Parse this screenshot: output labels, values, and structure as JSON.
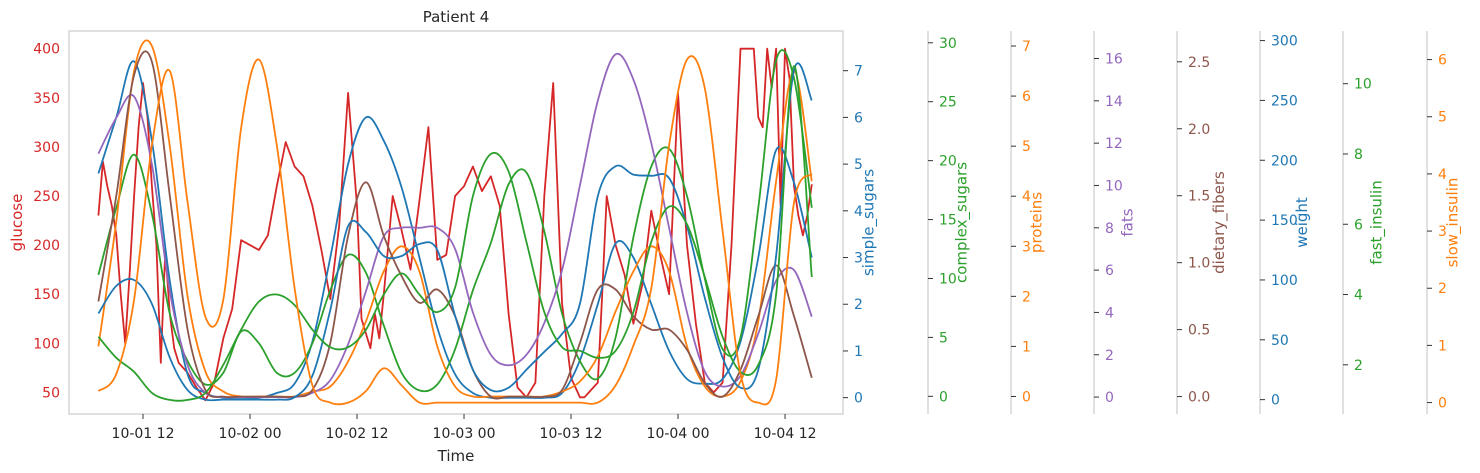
{
  "chart_data": {
    "type": "line",
    "title": "Patient 4",
    "xlabel": "Time",
    "x_tick_labels": [
      "10-01 12",
      "10-02 00",
      "10-02 12",
      "10-03 00",
      "10-03 12",
      "10-04 00",
      "10-04 12"
    ],
    "x_tick_hours": [
      12,
      24,
      36,
      48,
      60,
      72,
      84
    ],
    "xlim_hours": [
      3.7,
      90.5
    ],
    "x_hours": [
      7,
      9,
      11,
      13,
      15,
      17,
      19,
      21,
      23,
      25,
      27,
      29,
      31,
      33,
      35,
      37,
      39,
      41,
      43,
      45,
      47,
      49,
      51,
      53,
      55,
      57,
      59,
      61,
      63,
      65,
      67,
      69,
      71,
      73,
      75,
      77,
      79,
      81,
      83,
      85,
      87
    ],
    "axes": [
      {
        "name": "glucose",
        "label": "glucose",
        "color": "#d62728",
        "ylim": [
          28,
          418
        ],
        "ticks": [
          50,
          100,
          150,
          200,
          250,
          300,
          350,
          400
        ],
        "tick_labels": [
          "50",
          "100",
          "150",
          "200",
          "250",
          "300",
          "350",
          "400"
        ]
      },
      {
        "name": "simple_sugars",
        "label": "simple_sugars",
        "color": "#1f77b4",
        "ylim": [
          -0.35,
          7.85
        ],
        "ticks": [
          0,
          1,
          2,
          3,
          4,
          5,
          6,
          7
        ],
        "tick_labels": [
          "0",
          "1",
          "2",
          "3",
          "4",
          "5",
          "6",
          "7"
        ]
      },
      {
        "name": "complex_sugars",
        "label": "complex_sugars",
        "color": "#2ca02c",
        "ylim": [
          -1.5,
          31
        ],
        "ticks": [
          0,
          5,
          10,
          15,
          20,
          25,
          30
        ],
        "tick_labels": [
          "0",
          "5",
          "10",
          "15",
          "20",
          "25",
          "30"
        ]
      },
      {
        "name": "proteins",
        "label": "proteins",
        "color": "#ff7f0e",
        "ylim": [
          -0.35,
          7.3
        ],
        "ticks": [
          0,
          1,
          2,
          3,
          4,
          5,
          6,
          7
        ],
        "tick_labels": [
          "0",
          "1",
          "2",
          "3",
          "4",
          "5",
          "6",
          "7"
        ]
      },
      {
        "name": "fats",
        "label": "fats",
        "color": "#9467bd",
        "ylim": [
          -0.8,
          17.3
        ],
        "ticks": [
          0,
          2,
          4,
          6,
          8,
          10,
          12,
          14,
          16
        ],
        "tick_labels": [
          "0",
          "2",
          "4",
          "6",
          "8",
          "10",
          "12",
          "14",
          "16"
        ]
      },
      {
        "name": "dietary_fibers",
        "label": "dietary_fibers",
        "color": "#8c564b",
        "ylim": [
          -0.13,
          2.73
        ],
        "ticks": [
          0,
          0.5,
          1.0,
          1.5,
          2.0,
          2.5
        ],
        "tick_labels": [
          "0.0",
          "0.5",
          "1.0",
          "1.5",
          "2.0",
          "2.5"
        ]
      },
      {
        "name": "weight",
        "label": "weight",
        "color": "#1f77b4",
        "ylim": [
          -12,
          308
        ],
        "ticks": [
          0,
          50,
          100,
          150,
          200,
          250,
          300
        ],
        "tick_labels": [
          "0",
          "50",
          "100",
          "150",
          "200",
          "250",
          "300"
        ]
      },
      {
        "name": "fast_insulin",
        "label": "fast_insulin",
        "color": "#2ca02c",
        "ylim": [
          0.6,
          11.5
        ],
        "ticks": [
          2,
          4,
          6,
          8,
          10
        ],
        "tick_labels": [
          "2",
          "4",
          "6",
          "8",
          "10"
        ]
      },
      {
        "name": "slow_insulin",
        "label": "slow_insulin",
        "color": "#ff7f0e",
        "ylim": [
          -0.2,
          6.5
        ],
        "ticks": [
          0,
          1,
          2,
          3,
          4,
          5,
          6
        ],
        "tick_labels": [
          "0",
          "1",
          "2",
          "3",
          "4",
          "5",
          "6"
        ]
      }
    ],
    "series": [
      {
        "name": "glucose",
        "axis": 0,
        "color": "#d62728",
        "x": [
          7,
          7.5,
          8,
          8.5,
          9,
          9.5,
          10,
          10.5,
          11,
          11.5,
          12,
          12.5,
          13,
          13.5,
          14,
          14.5,
          15,
          15.5,
          16,
          17,
          18,
          19,
          20,
          21,
          22,
          23,
          24,
          25,
          26,
          27,
          28,
          29,
          30,
          31,
          32,
          33,
          34,
          35,
          36,
          36.5,
          37,
          37.5,
          38,
          38.5,
          39,
          40,
          41,
          42,
          43,
          44,
          45,
          46,
          47,
          48,
          49,
          50,
          51,
          52,
          53,
          54,
          55,
          56,
          57,
          58,
          59,
          60,
          60.5,
          61,
          61.5,
          62,
          62.5,
          63,
          63.5,
          64,
          65,
          66,
          67,
          68,
          69,
          70,
          71,
          72,
          73,
          74,
          75,
          76,
          77,
          78,
          79,
          80,
          80.5,
          81,
          81.5,
          82,
          82.5,
          83,
          83.5,
          84,
          84.5,
          85,
          85.5,
          86,
          86.5,
          87
        ],
        "y": [
          230,
          285,
          260,
          240,
          210,
          150,
          100,
          170,
          250,
          320,
          365,
          330,
          260,
          200,
          80,
          195,
          130,
          95,
          80,
          70,
          55,
          42,
          60,
          105,
          135,
          205,
          200,
          195,
          210,
          260,
          305,
          280,
          270,
          240,
          195,
          145,
          220,
          355,
          240,
          125,
          110,
          95,
          130,
          105,
          150,
          250,
          215,
          175,
          245,
          320,
          185,
          190,
          250,
          260,
          280,
          255,
          270,
          240,
          130,
          55,
          45,
          60,
          250,
          365,
          140,
          65,
          55,
          45,
          45,
          50,
          55,
          60,
          150,
          250,
          200,
          170,
          120,
          160,
          235,
          190,
          150,
          355,
          200,
          120,
          60,
          50,
          60,
          200,
          400,
          400,
          400,
          330,
          320,
          400,
          360,
          400,
          240,
          400,
          370,
          260,
          230,
          210,
          230,
          262
        ]
      },
      {
        "name": "simple_sugars",
        "axis": 1,
        "color": "#1f77b4",
        "x": [
          7,
          9,
          11,
          13,
          15,
          17,
          19,
          21,
          23,
          25,
          27,
          29,
          31,
          33,
          35,
          37,
          39,
          41,
          43,
          45,
          47,
          49,
          51,
          53,
          55,
          57,
          59,
          61,
          63,
          65,
          67,
          69,
          71,
          73,
          75,
          77,
          79,
          81,
          83,
          85,
          87
        ],
        "y": [
          4.8,
          6.0,
          7.2,
          5.5,
          2.5,
          0.5,
          0.1,
          0.0,
          0.0,
          0.0,
          0.1,
          0.3,
          1.2,
          3.0,
          5.0,
          6.0,
          5.5,
          4.5,
          3.0,
          1.5,
          0.5,
          0.1,
          0.0,
          0.0,
          0.0,
          0.0,
          0.1,
          0.8,
          2.0,
          3.3,
          3.0,
          2.0,
          1.0,
          0.4,
          0.3,
          0.4,
          1.2,
          3.0,
          5.3,
          4.6,
          3.0
        ]
      },
      {
        "name": "complex_sugars",
        "axis": 2,
        "color": "#2ca02c",
        "x": [
          7,
          9,
          11,
          13,
          15,
          17,
          19,
          21,
          23,
          25,
          27,
          29,
          31,
          33,
          35,
          37,
          39,
          41,
          43,
          45,
          47,
          49,
          51,
          53,
          55,
          57,
          59,
          61,
          63,
          65,
          67,
          69,
          71,
          73,
          75,
          77,
          79,
          81,
          83,
          85,
          87
        ],
        "y": [
          10.3,
          16.0,
          20.5,
          15.5,
          7.0,
          3.0,
          1.0,
          2.0,
          5.5,
          4.5,
          2.0,
          2.0,
          4.5,
          9.0,
          12.0,
          10.5,
          6.0,
          2.0,
          0.5,
          1.0,
          4.0,
          9.0,
          13.0,
          18.0,
          19.0,
          14.0,
          7.0,
          3.0,
          1.5,
          5.0,
          13.5,
          19.5,
          21.0,
          17.0,
          10.0,
          4.0,
          5.0,
          16.0,
          28.5,
          27.0,
          16.0
        ]
      },
      {
        "name": "proteins",
        "axis": 3,
        "color": "#ff7f0e",
        "x": [
          7,
          9,
          11,
          13,
          15,
          17,
          19,
          21,
          23,
          25,
          27,
          29,
          31,
          33,
          35,
          37,
          39,
          41,
          43,
          45,
          47,
          49,
          51,
          53,
          55,
          57,
          59,
          61,
          63,
          65,
          67,
          69,
          71,
          73,
          75,
          77,
          79,
          81,
          83,
          85,
          87
        ],
        "y": [
          1.0,
          3.5,
          6.5,
          7.0,
          5.0,
          2.0,
          0.5,
          0.1,
          0.0,
          0.0,
          0.0,
          0.0,
          0.1,
          0.2,
          0.7,
          1.5,
          2.5,
          3.0,
          2.5,
          1.0,
          0.2,
          0.0,
          0.0,
          0.0,
          0.0,
          0.0,
          0.1,
          0.3,
          0.8,
          1.7,
          2.5,
          3.0,
          2.5,
          1.0,
          0.2,
          0.0,
          0.3,
          1.5,
          4.3,
          6.5,
          4.3
        ]
      },
      {
        "name": "fats",
        "axis": 4,
        "color": "#9467bd",
        "x": [
          7,
          9,
          11,
          13,
          15,
          17,
          19,
          21,
          23,
          25,
          27,
          29,
          31,
          33,
          35,
          37,
          39,
          41,
          43,
          45,
          47,
          49,
          51,
          53,
          55,
          57,
          59,
          61,
          63,
          65,
          67,
          69,
          71,
          73,
          75,
          77,
          79,
          81,
          83,
          85,
          87
        ],
        "y": [
          11.5,
          13.2,
          14.2,
          11.0,
          5.0,
          1.5,
          0.2,
          0.0,
          0.0,
          0.0,
          0.0,
          0.0,
          0.2,
          0.8,
          2.5,
          5.0,
          7.6,
          8.0,
          8.0,
          8.0,
          7.0,
          4.0,
          2.0,
          1.5,
          2.0,
          3.5,
          6.0,
          10.0,
          14.0,
          16.2,
          15.0,
          12.0,
          8.0,
          4.0,
          1.2,
          0.5,
          1.0,
          3.0,
          5.5,
          6.0,
          3.8
        ]
      },
      {
        "name": "dietary_fibers",
        "axis": 5,
        "color": "#8c564b",
        "x": [
          7,
          9,
          11,
          13,
          15,
          17,
          19,
          21,
          23,
          25,
          27,
          29,
          31,
          33,
          35,
          37,
          39,
          41,
          43,
          45,
          47,
          49,
          51,
          53,
          55,
          57,
          59,
          61,
          63,
          65,
          67,
          69,
          71,
          73,
          75,
          77,
          79,
          81,
          83,
          85,
          87
        ],
        "y": [
          0.71,
          1.5,
          2.4,
          2.5,
          1.5,
          0.5,
          0.05,
          0.0,
          0.0,
          0.0,
          0.0,
          0.0,
          0.05,
          0.4,
          1.2,
          1.6,
          1.2,
          0.9,
          0.7,
          0.8,
          0.6,
          0.2,
          0.0,
          0.0,
          0.0,
          0.0,
          0.05,
          0.4,
          0.8,
          0.8,
          0.6,
          0.5,
          0.5,
          0.35,
          0.1,
          0.0,
          0.2,
          0.6,
          0.98,
          0.6,
          0.14
        ]
      },
      {
        "name": "weight",
        "axis": 6,
        "color": "#1f77b4",
        "x": [
          7,
          9,
          11,
          13,
          15,
          17,
          19,
          21,
          23,
          25,
          27,
          29,
          31,
          33,
          35,
          37,
          39,
          41,
          43,
          45,
          47,
          49,
          51,
          53,
          55,
          57,
          59,
          61,
          63,
          65,
          67,
          69,
          71,
          73,
          75,
          77,
          79,
          81,
          83,
          85,
          87
        ],
        "y": [
          72,
          95,
          100,
          80,
          35,
          8,
          0,
          0,
          0,
          0,
          0,
          2,
          20,
          75,
          145,
          140,
          120,
          120,
          130,
          125,
          70,
          25,
          8,
          10,
          25,
          40,
          55,
          80,
          170,
          195,
          188,
          187,
          185,
          145,
          85,
          35,
          10,
          25,
          120,
          275,
          250
        ]
      },
      {
        "name": "fast_insulin",
        "axis": 7,
        "color": "#2ca02c",
        "x": [
          7,
          9,
          11,
          13,
          15,
          17,
          19,
          21,
          23,
          25,
          27,
          29,
          31,
          33,
          35,
          37,
          39,
          41,
          43,
          45,
          47,
          49,
          51,
          53,
          55,
          57,
          59,
          61,
          63,
          65,
          67,
          69,
          71,
          73,
          75,
          77,
          79,
          81,
          83,
          85,
          87
        ],
        "y": [
          2.8,
          2.2,
          1.8,
          1.2,
          1.0,
          1.0,
          1.2,
          2.0,
          3.0,
          3.8,
          4.0,
          3.7,
          3.0,
          2.5,
          2.5,
          3.0,
          4.0,
          4.6,
          4.0,
          3.5,
          4.2,
          6.8,
          8.0,
          7.5,
          5.5,
          3.5,
          2.5,
          2.4,
          2.2,
          2.4,
          3.5,
          5.5,
          6.5,
          6.0,
          4.5,
          2.8,
          1.8,
          2.0,
          4.0,
          10.5,
          4.5
        ]
      },
      {
        "name": "slow_insulin",
        "axis": 8,
        "color": "#ff7f0e",
        "x": [
          7,
          9,
          11,
          13,
          15,
          17,
          19,
          21,
          23,
          25,
          27,
          29,
          31,
          33,
          35,
          37,
          39,
          41,
          43,
          45,
          47,
          49,
          51,
          53,
          55,
          57,
          59,
          61,
          63,
          65,
          67,
          69,
          71,
          73,
          75,
          77,
          79,
          81,
          83,
          85,
          87
        ],
        "y": [
          0.2,
          0.5,
          1.8,
          4.5,
          5.8,
          3.5,
          1.5,
          1.8,
          4.8,
          6.0,
          4.5,
          2.0,
          0.3,
          0.0,
          0.0,
          0.2,
          0.6,
          0.3,
          0.0,
          0.0,
          0.0,
          0.0,
          0.0,
          0.0,
          0.0,
          0.0,
          0.0,
          0.0,
          0.0,
          0.3,
          1.0,
          2.0,
          4.5,
          6.0,
          5.5,
          3.0,
          0.5,
          0.0,
          0.4,
          3.5,
          4.0
        ]
      }
    ]
  }
}
